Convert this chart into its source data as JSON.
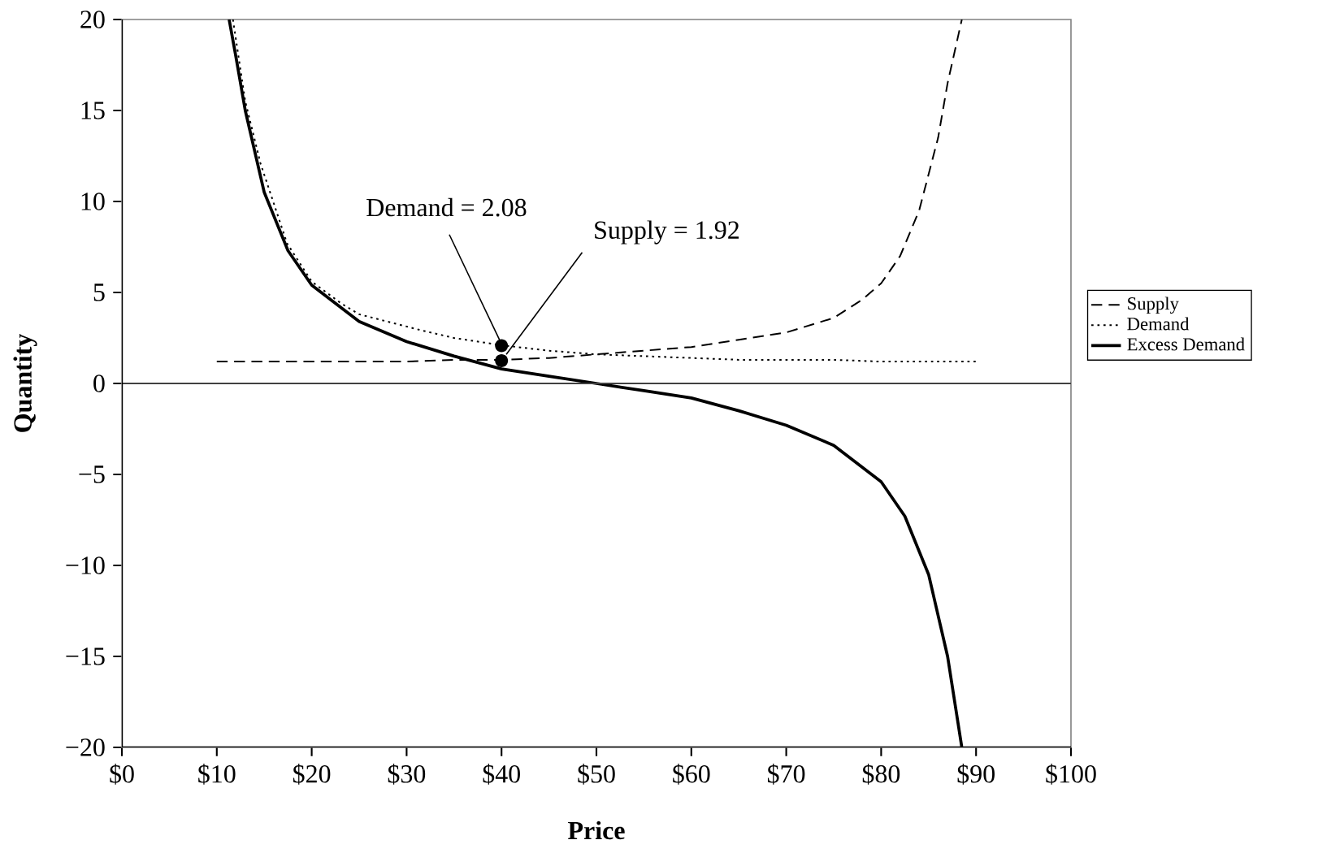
{
  "chart_data": {
    "type": "line",
    "xlabel": "Price",
    "ylabel": "Quantity",
    "xlim": [
      0,
      100
    ],
    "ylim": [
      -20,
      20
    ],
    "xticks": [
      {
        "value": 0,
        "label": "$0"
      },
      {
        "value": 10,
        "label": "$10"
      },
      {
        "value": 20,
        "label": "$20"
      },
      {
        "value": 30,
        "label": "$30"
      },
      {
        "value": 40,
        "label": "$40"
      },
      {
        "value": 50,
        "label": "$50"
      },
      {
        "value": 60,
        "label": "$60"
      },
      {
        "value": 70,
        "label": "$70"
      },
      {
        "value": 80,
        "label": "$80"
      },
      {
        "value": 90,
        "label": "$90"
      },
      {
        "value": 100,
        "label": "$100"
      }
    ],
    "yticks": [
      {
        "value": -20,
        "label": "−20"
      },
      {
        "value": -15,
        "label": "−15"
      },
      {
        "value": -10,
        "label": "−10"
      },
      {
        "value": -5,
        "label": "−5"
      },
      0,
      5,
      10,
      15,
      20
    ],
    "series": [
      {
        "name": "Supply",
        "color": "#000000",
        "line_style": "dashed",
        "x": [
          10,
          15,
          20,
          25,
          30,
          35,
          40,
          45,
          50,
          55,
          60,
          65,
          70,
          75,
          78,
          80,
          82,
          84,
          86,
          87,
          88.5
        ],
        "values": [
          1.2,
          1.2,
          1.2,
          1.2,
          1.2,
          1.3,
          1.3,
          1.4,
          1.6,
          1.8,
          2,
          2.4,
          2.8,
          3.6,
          4.6,
          5.5,
          7,
          9.5,
          13.5,
          16.5,
          20
        ]
      },
      {
        "name": "Demand",
        "color": "#000000",
        "line_style": "dotted",
        "x": [
          11.7,
          13,
          14.6,
          17.4,
          20,
          23.1,
          25,
          31.7,
          35,
          40,
          45,
          50,
          55,
          60,
          65,
          70,
          75,
          80,
          85,
          90
        ],
        "values": [
          20,
          15.5,
          12.1,
          7.7,
          5.6,
          4.4,
          3.8,
          2.9,
          2.5,
          2.1,
          1.8,
          1.6,
          1.5,
          1.4,
          1.3,
          1.3,
          1.3,
          1.2,
          1.2,
          1.2
        ]
      },
      {
        "name": "Excess Demand",
        "color": "#000000",
        "line_style": "solid",
        "x": [
          11.3,
          12,
          13,
          15,
          17.5,
          20,
          25,
          30,
          35,
          40,
          45,
          50,
          55,
          60,
          65,
          70,
          75,
          80,
          82.5,
          85,
          87,
          88.5
        ],
        "values": [
          20,
          18,
          15,
          10.5,
          7.3,
          5.4,
          3.4,
          2.3,
          1.5,
          0.8,
          0.4,
          0,
          -0.4,
          -0.8,
          -1.5,
          -2.3,
          -3.4,
          -5.4,
          -7.3,
          -10.5,
          -15,
          -20
        ]
      }
    ],
    "ref_lines": [
      {
        "axis": "y",
        "value": 0,
        "color": "#404040"
      }
    ],
    "annotations": [
      {
        "text": "Demand = 2.08",
        "x": 40,
        "y": 2.08
      },
      {
        "text": "Supply = 1.92",
        "x": 40,
        "y": 1.25
      }
    ],
    "legend": "right",
    "marker": "none"
  }
}
